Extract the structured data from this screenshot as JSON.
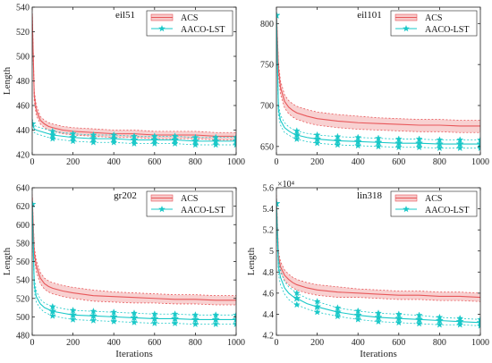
{
  "colors": {
    "acs": "#e8585b",
    "acs_fill": "#f7c9c9",
    "aaco": "#19c8c8",
    "axis": "#222222"
  },
  "chart_data": [
    {
      "type": "line",
      "title": "eil51",
      "xlabel": "",
      "ylabel": "Length",
      "xlim": [
        0,
        1000
      ],
      "ylim": [
        420,
        540
      ],
      "xticks": [
        0,
        200,
        400,
        600,
        800,
        1000
      ],
      "yticks": [
        420,
        440,
        460,
        480,
        500,
        520,
        540
      ],
      "multiplier": "",
      "legend_position": "top-right",
      "series": [
        {
          "name": "ACS",
          "x": [
            0,
            10,
            20,
            40,
            60,
            80,
            100,
            150,
            200,
            300,
            400,
            500,
            600,
            700,
            800,
            900,
            1000
          ],
          "mean": [
            535,
            468,
            456,
            448,
            445,
            443,
            442,
            440,
            439,
            438,
            437,
            437,
            436,
            436,
            436,
            435,
            435
          ],
          "upper": [
            538,
            472,
            460,
            451,
            448,
            446,
            445,
            443,
            442,
            441,
            440,
            440,
            439,
            439,
            439,
            438,
            438
          ],
          "lower": [
            532,
            464,
            452,
            445,
            442,
            440,
            439,
            437,
            436,
            435,
            434,
            434,
            433,
            433,
            433,
            432,
            432
          ]
        },
        {
          "name": "AACO-LST",
          "x": [
            0,
            10,
            20,
            40,
            60,
            80,
            100,
            150,
            200,
            300,
            400,
            500,
            600,
            700,
            800,
            900,
            1000
          ],
          "mean": [
            445,
            441,
            440,
            439,
            438,
            437,
            436,
            435,
            434,
            433,
            433,
            432,
            432,
            432,
            431,
            431,
            431
          ],
          "upper": [
            449,
            444,
            443,
            442,
            441,
            440,
            439,
            438,
            437,
            436,
            436,
            435,
            435,
            435,
            434,
            434,
            434
          ],
          "lower": [
            441,
            438,
            437,
            436,
            435,
            434,
            433,
            432,
            431,
            430,
            430,
            429,
            429,
            429,
            428,
            428,
            428
          ]
        }
      ]
    },
    {
      "type": "line",
      "title": "eil101",
      "xlabel": "",
      "ylabel": "",
      "xlim": [
        0,
        1000
      ],
      "ylim": [
        640,
        820
      ],
      "xticks": [
        0,
        200,
        400,
        600,
        800,
        1000
      ],
      "yticks": [
        650,
        700,
        750,
        800
      ],
      "multiplier": "",
      "legend_position": "top-right",
      "series": [
        {
          "name": "ACS",
          "x": [
            0,
            10,
            20,
            40,
            60,
            80,
            100,
            150,
            200,
            300,
            400,
            500,
            600,
            700,
            800,
            900,
            1000
          ],
          "mean": [
            815,
            745,
            722,
            705,
            698,
            694,
            691,
            687,
            684,
            681,
            679,
            678,
            677,
            676,
            676,
            675,
            675
          ],
          "upper": [
            818,
            752,
            730,
            713,
            706,
            702,
            699,
            695,
            692,
            689,
            687,
            685,
            684,
            683,
            683,
            682,
            682
          ],
          "lower": [
            812,
            738,
            714,
            697,
            690,
            686,
            683,
            679,
            676,
            673,
            671,
            670,
            669,
            668,
            668,
            667,
            667
          ]
        },
        {
          "name": "AACO-LST",
          "x": [
            0,
            10,
            20,
            40,
            60,
            80,
            100,
            150,
            200,
            300,
            400,
            500,
            600,
            700,
            800,
            900,
            1000
          ],
          "mean": [
            810,
            695,
            682,
            673,
            669,
            666,
            664,
            661,
            659,
            657,
            656,
            655,
            654,
            654,
            653,
            653,
            653
          ],
          "upper": [
            813,
            702,
            688,
            679,
            674,
            671,
            669,
            666,
            664,
            662,
            661,
            660,
            659,
            659,
            658,
            658,
            658
          ],
          "lower": [
            807,
            688,
            676,
            667,
            664,
            661,
            659,
            656,
            654,
            652,
            651,
            650,
            649,
            649,
            648,
            648,
            648
          ]
        }
      ]
    },
    {
      "type": "line",
      "title": "gr202",
      "xlabel": "Iterations",
      "ylabel": "Length",
      "xlim": [
        0,
        1000
      ],
      "ylim": [
        480,
        640
      ],
      "xticks": [
        0,
        200,
        400,
        600,
        800,
        1000
      ],
      "yticks": [
        480,
        500,
        520,
        540,
        560,
        580,
        600,
        620,
        640
      ],
      "multiplier": "",
      "legend_position": "top-right",
      "series": [
        {
          "name": "ACS",
          "x": [
            0,
            10,
            20,
            40,
            60,
            80,
            100,
            150,
            200,
            300,
            400,
            500,
            600,
            700,
            800,
            900,
            1000
          ],
          "mean": [
            630,
            570,
            555,
            542,
            536,
            533,
            531,
            528,
            526,
            523,
            522,
            521,
            520,
            519,
            519,
            518,
            518
          ],
          "upper": [
            633,
            576,
            561,
            548,
            542,
            539,
            537,
            534,
            532,
            529,
            527,
            526,
            525,
            524,
            524,
            523,
            523
          ],
          "lower": [
            627,
            564,
            549,
            536,
            530,
            527,
            525,
            522,
            520,
            517,
            516,
            515,
            515,
            514,
            514,
            513,
            513
          ]
        },
        {
          "name": "AACO-LST",
          "x": [
            0,
            10,
            20,
            40,
            60,
            80,
            100,
            150,
            200,
            300,
            400,
            500,
            600,
            700,
            800,
            900,
            1000
          ],
          "mean": [
            622,
            535,
            522,
            514,
            510,
            508,
            506,
            504,
            502,
            501,
            500,
            499,
            498,
            498,
            497,
            497,
            497
          ],
          "upper": [
            626,
            542,
            528,
            519,
            515,
            513,
            511,
            509,
            507,
            506,
            505,
            504,
            503,
            503,
            502,
            502,
            502
          ],
          "lower": [
            618,
            528,
            516,
            509,
            505,
            503,
            501,
            499,
            497,
            496,
            495,
            494,
            493,
            493,
            492,
            492,
            492
          ]
        }
      ]
    },
    {
      "type": "line",
      "title": "lin318",
      "xlabel": "Iterations",
      "ylabel": "Length",
      "xlim": [
        0,
        1000
      ],
      "ylim": [
        4.2,
        5.6
      ],
      "xticks": [
        0,
        200,
        400,
        600,
        800,
        1000
      ],
      "yticks": [
        4.2,
        4.4,
        4.6,
        4.8,
        5.0,
        5.2,
        5.4,
        5.6
      ],
      "multiplier": "×10⁴",
      "legend_position": "top-right",
      "series": [
        {
          "name": "ACS",
          "x": [
            0,
            10,
            20,
            40,
            60,
            80,
            100,
            150,
            200,
            300,
            400,
            500,
            600,
            700,
            800,
            900,
            1000
          ],
          "mean": [
            5.5,
            4.95,
            4.85,
            4.77,
            4.73,
            4.7,
            4.68,
            4.65,
            4.63,
            4.61,
            4.6,
            4.59,
            4.58,
            4.58,
            4.57,
            4.57,
            4.56
          ],
          "upper": [
            5.53,
            5.0,
            4.9,
            4.82,
            4.78,
            4.75,
            4.73,
            4.7,
            4.68,
            4.66,
            4.64,
            4.63,
            4.62,
            4.62,
            4.61,
            4.61,
            4.6
          ],
          "lower": [
            5.47,
            4.9,
            4.8,
            4.72,
            4.68,
            4.65,
            4.63,
            4.6,
            4.58,
            4.56,
            4.56,
            4.55,
            4.54,
            4.54,
            4.53,
            4.53,
            4.52
          ]
        },
        {
          "name": "AACO-LST",
          "x": [
            0,
            10,
            20,
            40,
            60,
            80,
            100,
            150,
            200,
            300,
            400,
            500,
            600,
            700,
            800,
            900,
            1000
          ],
          "mean": [
            5.45,
            4.85,
            4.75,
            4.65,
            4.6,
            4.57,
            4.55,
            4.5,
            4.47,
            4.42,
            4.39,
            4.37,
            4.36,
            4.35,
            4.34,
            4.33,
            4.32
          ],
          "upper": [
            5.5,
            4.92,
            4.82,
            4.71,
            4.66,
            4.63,
            4.6,
            4.55,
            4.52,
            4.46,
            4.43,
            4.41,
            4.4,
            4.39,
            4.37,
            4.36,
            4.35
          ],
          "lower": [
            5.4,
            4.78,
            4.68,
            4.59,
            4.54,
            4.51,
            4.49,
            4.45,
            4.42,
            4.38,
            4.35,
            4.33,
            4.32,
            4.31,
            4.3,
            4.3,
            4.29
          ]
        }
      ]
    }
  ]
}
